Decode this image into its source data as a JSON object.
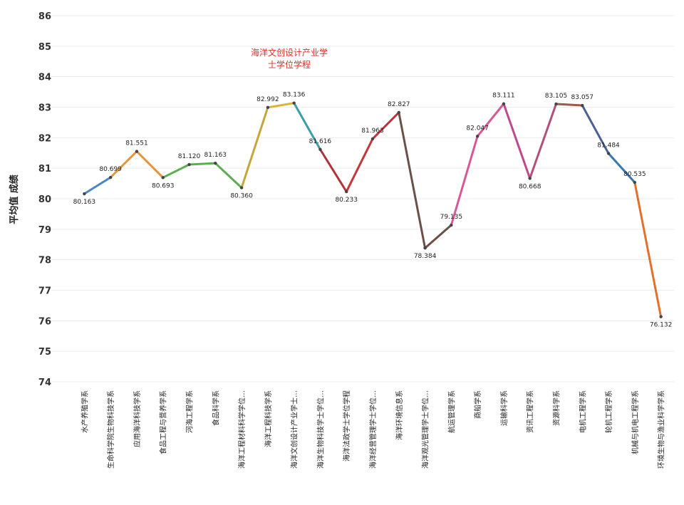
{
  "chart_data": {
    "type": "line",
    "ylabel": "平均值 成绩",
    "ylim": [
      74,
      86
    ],
    "yticks": [
      74,
      75,
      76,
      77,
      78,
      79,
      80,
      81,
      82,
      83,
      84,
      85,
      86
    ],
    "grid": true,
    "categories": [
      "水产养殖学系",
      "生命科学院生物科技学系",
      "应用海洋科技学系",
      "食品工程与营养学系",
      "河海工程学系",
      "食品科学系",
      "海洋工程材料科学学位…",
      "海洋工程科技学系",
      "海洋文创设计产业学士…",
      "海洋生物科技学士学位…",
      "海洋法政学士学位学程",
      "海洋经营管理学士学位…",
      "海洋环境信息系",
      "海洋观光管理学士学位…",
      "航运管理学系",
      "商船学系",
      "运输科学系",
      "资讯工程学系",
      "资源科学系",
      "电机工程学系",
      "轮机工程学系",
      "机械与机电工程学系",
      "环境生物与渔业科学学系"
    ],
    "values": [
      80.163,
      80.699,
      81.551,
      80.693,
      81.12,
      81.163,
      80.36,
      82.992,
      83.136,
      81.616,
      80.233,
      81.963,
      82.827,
      78.384,
      79.135,
      82.047,
      83.111,
      80.668,
      83.105,
      83.057,
      81.484,
      80.535,
      76.132
    ],
    "data_labels": [
      "80.163",
      "80.699",
      "81.551",
      "80.693",
      "81.120",
      "81.163",
      "80.360",
      "82.992",
      "83.136",
      "81.616",
      "80.233",
      "81.963",
      "82.827",
      "78.384",
      "79.135",
      "82.047",
      "83.111",
      "80.668",
      "83.105",
      "83.057",
      "81.484",
      "80.535",
      "76.132"
    ],
    "annotation": {
      "lines": [
        "海洋文创设计产业学",
        "士学位学程"
      ],
      "color": "#d9322d"
    },
    "segment_colors": [
      "#4a86c8",
      "#e8943a",
      "#e8943a",
      "#5aae4e",
      "#5aae4e",
      "#5aae4e",
      "#c6a63a",
      "#d8b43a",
      "#3a9fa8",
      "#b0343a",
      "#c8343a",
      "#b8343a",
      "#6a5048",
      "#6a5048",
      "#d85896",
      "#d85896",
      "#c0488c",
      "#b2507c",
      "#9a5a4a",
      "#4a6090",
      "#3a78b0",
      "#e2702a"
    ]
  }
}
